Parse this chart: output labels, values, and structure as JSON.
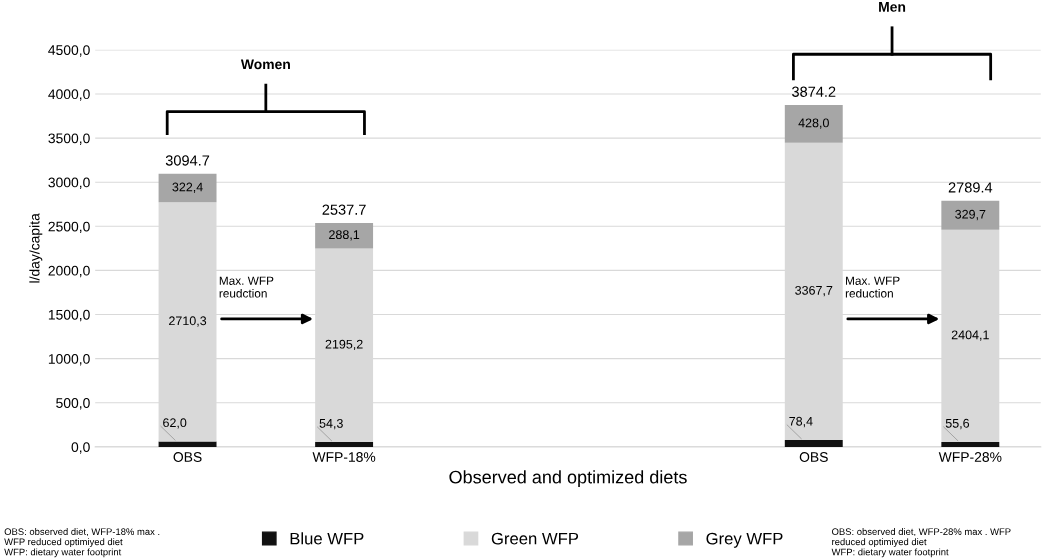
{
  "chart_data": {
    "type": "bar",
    "stacked": true,
    "categories": [
      "OBS",
      "WFP-18%",
      null,
      null,
      "OBS",
      "WFP-28%"
    ],
    "xlabel": "Observed and optimized diets",
    "ylabel": "l/day/capita",
    "series": [
      {
        "name": "Blue WFP",
        "color": "#111111",
        "values": [
          62.0,
          54.3,
          null,
          null,
          78.4,
          55.6
        ],
        "value_labels": [
          "62,0",
          "54,3",
          null,
          null,
          "78,4",
          "55,6"
        ]
      },
      {
        "name": "Green WFP",
        "color": "#d9d9d9",
        "values": [
          2710.3,
          2195.2,
          null,
          null,
          3367.7,
          2404.1
        ],
        "value_labels": [
          "2710,3",
          "2195,2",
          null,
          null,
          "3367,7",
          "2404,1"
        ]
      },
      {
        "name": "Grey WFP",
        "color": "#a6a6a6",
        "values": [
          322.4,
          288.1,
          null,
          null,
          428.0,
          329.7
        ],
        "value_labels": [
          "322,4",
          "288,1",
          null,
          null,
          "428,0",
          "329,7"
        ]
      }
    ],
    "totals": [
      "3094.7",
      "2537.7",
      null,
      null,
      "3874.2",
      "2789.4"
    ],
    "ylim": [
      0,
      4500
    ],
    "yticks": [
      {
        "value": 0,
        "label": "0,0"
      },
      {
        "value": 500,
        "label": "500,0"
      },
      {
        "value": 1000,
        "label": "1000,0"
      },
      {
        "value": 1500,
        "label": "1500,0"
      },
      {
        "value": 2000,
        "label": "2000,0"
      },
      {
        "value": 2500,
        "label": "2500,0"
      },
      {
        "value": 3000,
        "label": "3000,0"
      },
      {
        "value": 3500,
        "label": "3500,0"
      },
      {
        "value": 4000,
        "label": "4000,0"
      },
      {
        "value": 4500,
        "label": "4500,0"
      }
    ],
    "grid": "y",
    "legend": "bottom",
    "annotations": [
      "Women",
      "Men",
      "Max. WFP\nreudction",
      "Max. WFP\nreduction",
      "OBS: observed diet, WFP-18% max .\nWFP reduced optimiyed diet\nWFP: dietary water footprint",
      "OBS: observed diet, WFP-28% max . WFP\nreduced optimiyed diet\nWFP: dietary water footprint"
    ]
  }
}
